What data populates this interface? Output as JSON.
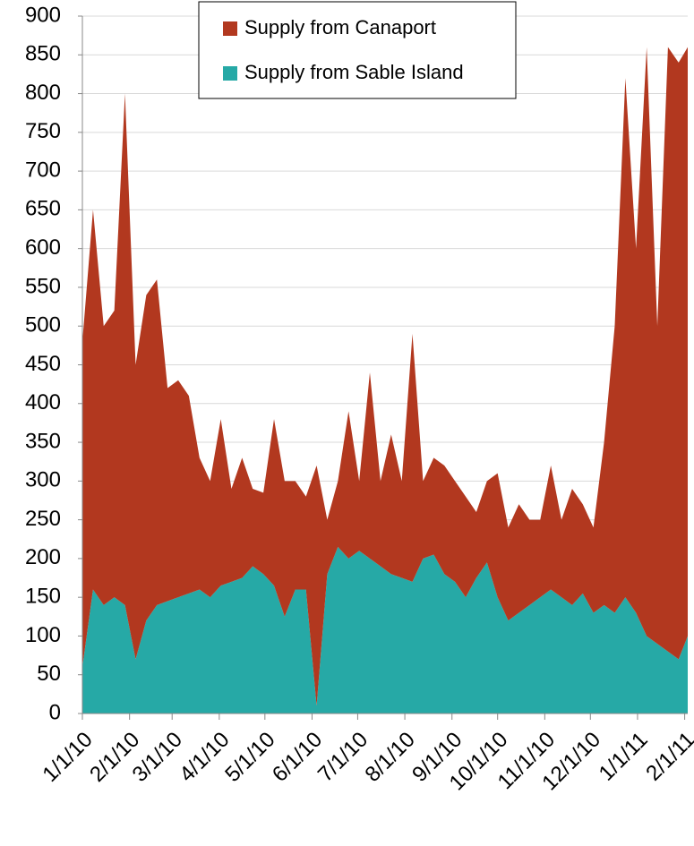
{
  "chart_data": {
    "type": "stacked-area",
    "x": [
      "1/1/10",
      "1/8/10",
      "1/15/10",
      "1/22/10",
      "1/29/10",
      "2/5/10",
      "2/12/10",
      "2/19/10",
      "2/26/10",
      "3/5/10",
      "3/12/10",
      "3/19/10",
      "3/26/10",
      "4/2/10",
      "4/9/10",
      "4/16/10",
      "4/23/10",
      "4/30/10",
      "5/7/10",
      "5/14/10",
      "5/21/10",
      "5/28/10",
      "6/4/10",
      "6/11/10",
      "6/18/10",
      "6/25/10",
      "7/2/10",
      "7/9/10",
      "7/16/10",
      "7/23/10",
      "7/30/10",
      "8/6/10",
      "8/13/10",
      "8/20/10",
      "8/27/10",
      "9/3/10",
      "9/10/10",
      "9/17/10",
      "9/24/10",
      "10/1/10",
      "10/8/10",
      "10/15/10",
      "10/22/10",
      "10/29/10",
      "11/5/10",
      "11/12/10",
      "11/19/10",
      "11/26/10",
      "12/3/10",
      "12/10/10",
      "12/17/10",
      "12/24/10",
      "12/31/10",
      "1/7/11",
      "1/14/11",
      "1/21/11",
      "1/28/11",
      "2/3/11"
    ],
    "series": [
      {
        "name": "Supply from Sable Island",
        "color": "#26a9a6",
        "values": [
          60,
          160,
          140,
          150,
          140,
          70,
          120,
          140,
          145,
          150,
          155,
          160,
          150,
          165,
          170,
          175,
          190,
          180,
          165,
          125,
          160,
          160,
          10,
          180,
          215,
          200,
          210,
          200,
          190,
          180,
          175,
          170,
          200,
          205,
          180,
          170,
          150,
          175,
          195,
          150,
          120,
          130,
          140,
          150,
          160,
          150,
          140,
          155,
          130,
          140,
          130,
          150,
          130,
          100,
          90,
          80,
          70,
          100
        ]
      },
      {
        "name": "Supply from Canaport",
        "color": "#b2381f",
        "values": [
          420,
          490,
          360,
          370,
          660,
          380,
          420,
          420,
          275,
          280,
          255,
          170,
          150,
          215,
          120,
          155,
          100,
          105,
          215,
          175,
          140,
          120,
          310,
          70,
          85,
          190,
          90,
          240,
          110,
          180,
          125,
          320,
          100,
          125,
          140,
          130,
          130,
          85,
          105,
          160,
          120,
          140,
          110,
          100,
          160,
          100,
          150,
          115,
          110,
          210,
          370,
          670,
          470,
          760,
          410,
          780,
          770,
          760
        ]
      }
    ],
    "xlim": [
      "1/1/10",
      "2/3/11"
    ],
    "xticks": [
      "1/1/10",
      "2/1/10",
      "3/1/10",
      "4/1/10",
      "5/1/10",
      "6/1/10",
      "7/1/10",
      "8/1/10",
      "9/1/10",
      "10/1/10",
      "11/1/10",
      "12/1/10",
      "1/1/11",
      "2/1/11"
    ],
    "ylim": [
      0,
      900
    ],
    "yticks": [
      0,
      50,
      100,
      150,
      200,
      250,
      300,
      350,
      400,
      450,
      500,
      550,
      600,
      650,
      700,
      750,
      800,
      850,
      900
    ],
    "grid": true,
    "legend": "top"
  }
}
